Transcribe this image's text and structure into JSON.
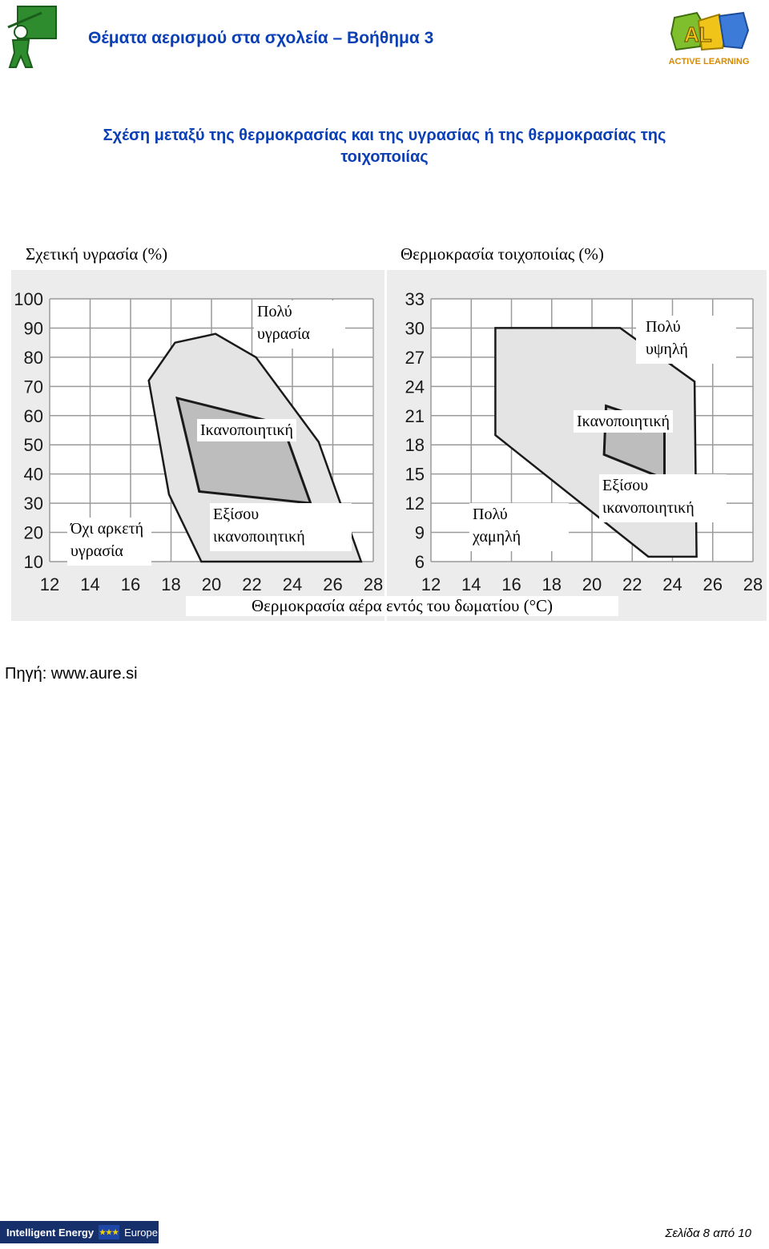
{
  "header": {
    "title": "Θέματα αερισμού στα σχολεία – Βοήθημα 3",
    "right_logo_text": "ACTIVE LEARNING",
    "right_logo_letters": "AL"
  },
  "section_title": {
    "line1": "Σχέση μεταξύ της θερμοκρασίας και της υγρασίας ή της θερμοκρασίας της",
    "line2": "τοιχοποιίας"
  },
  "chart_data": [
    {
      "type": "area",
      "ylabel": "Σχετική υγρασία (%)",
      "xlabel": "Θερμοκρασία αέρα εντός του δωματίου (°C)",
      "xlim": [
        12,
        28
      ],
      "ylim": [
        10,
        100
      ],
      "x_ticks": [
        "12",
        "14",
        "16",
        "18",
        "20",
        "22",
        "24",
        "26",
        "28"
      ],
      "y_ticks": [
        "100",
        "90",
        "80",
        "70",
        "60",
        "50",
        "40",
        "30",
        "20",
        "10"
      ],
      "grid": true,
      "series": [
        {
          "name": "Εξίσου ικανοποιητική",
          "points": [
            [
              16.9,
              72
            ],
            [
              18.2,
              85
            ],
            [
              20.2,
              88
            ],
            [
              22.2,
              80
            ],
            [
              25.3,
              51
            ],
            [
              27.4,
              10
            ],
            [
              19.5,
              10
            ],
            [
              17.9,
              33
            ]
          ]
        },
        {
          "name": "Ικανοποιητική",
          "points": [
            [
              18.3,
              66
            ],
            [
              23.5,
              57
            ],
            [
              24.9,
              30
            ],
            [
              19.4,
              34
            ]
          ]
        }
      ],
      "annotations": [
        "Πολύ υγρασία",
        "Ικανοποιητική",
        "Όχι αρκετή υγρασία",
        "Εξίσου ικανοποιητική"
      ]
    },
    {
      "type": "area",
      "ylabel": "Θερμοκρασία τοιχοποιίας (%)",
      "xlabel": "Θερμοκρασία αέρα εντός του δωματίου (°C)",
      "xlim": [
        12,
        28
      ],
      "ylim": [
        6,
        33
      ],
      "x_ticks": [
        "12",
        "14",
        "16",
        "18",
        "20",
        "22",
        "24",
        "26",
        "28"
      ],
      "y_ticks": [
        "33",
        "30",
        "27",
        "24",
        "21",
        "18",
        "15",
        "12",
        "9",
        "6"
      ],
      "grid": true,
      "series": [
        {
          "name": "Εξίσου ικανοποιητική",
          "points": [
            [
              15.2,
              30
            ],
            [
              21.4,
              30
            ],
            [
              25.1,
              24.5
            ],
            [
              25.2,
              6.5
            ],
            [
              22.8,
              6.5
            ],
            [
              15.2,
              19
            ]
          ]
        },
        {
          "name": "Ικανοποιητική",
          "points": [
            [
              20.7,
              22
            ],
            [
              23.6,
              20
            ],
            [
              23.6,
              14.5
            ],
            [
              20.6,
              17
            ]
          ]
        }
      ],
      "annotations": [
        "Πολύ υψηλή",
        "Ικανοποιητική",
        "Εξίσου ικανοποιητική",
        "Πολύ χαμηλή"
      ]
    }
  ],
  "labels": {
    "left_axis_caption": "Σχετική υγρασία (%)",
    "right_axis_caption": "Θερμοκρασία τοιχοποιίας (%)",
    "x_axis_caption": "Θερμοκρασία αέρα εντός του δωματίου (",
    "x_axis_unit": "°C)",
    "left_region_top_1": "Πολύ",
    "left_region_top_2": "υγρασία",
    "left_region_mid": "Ικανοποιητική",
    "left_region_low_1": "Όχι αρκετή",
    "left_region_low_2": "υγρασία",
    "left_region_equal_1": "Εξίσου",
    "left_region_equal_2": "ικανοποιητική",
    "right_region_top_1": "Πολύ",
    "right_region_top_2": "υψηλή",
    "right_region_mid": "Ικανοποιητική",
    "right_region_equal_1": "Εξίσου",
    "right_region_equal_2": "ικανοποιητική",
    "right_region_low_1": "Πολύ",
    "right_region_low_2": "χαμηλή"
  },
  "source": "Πηγή: www.aure.si",
  "footer": {
    "logo_text": "Intelligent Energy",
    "logo_suffix": "Europe",
    "page": "Σελίδα 8 από 10"
  },
  "colors": {
    "title_blue": "#0b3fb5",
    "outer_region": "#e4e4e4",
    "inner_region": "#bdbdbd",
    "grid": "#9a9a9a"
  }
}
